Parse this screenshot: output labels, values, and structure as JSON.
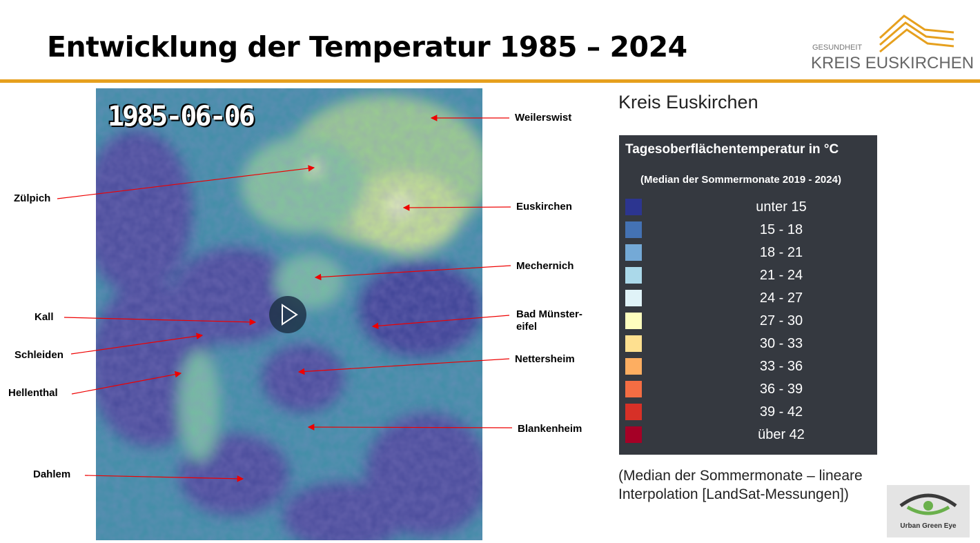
{
  "header": {
    "title": "Entwicklung der Temperatur 1985 – 2024",
    "logo_top": "GESUNDHEIT",
    "logo_bottom": "KREIS EUSKIRCHEN"
  },
  "map": {
    "date_stamp": "1985-06-06",
    "places": [
      "Weilerswist",
      "Zülpich",
      "Euskirchen",
      "Mechernich",
      "Kall",
      "Bad Münster-\neifel",
      "Schleiden",
      "Nettersheim",
      "Hellenthal",
      "Blankenheim",
      "Dahlem"
    ]
  },
  "side": {
    "heading": "Kreis Euskirchen",
    "legend": {
      "title": "Tagesoberflächentemperatur in °C",
      "subtitle": "(Median der Sommermonate 2019 - 2024)",
      "items": [
        {
          "label": "unter 15",
          "color": "#2c3590"
        },
        {
          "label": "15 - 18",
          "color": "#4472b4"
        },
        {
          "label": "18 - 21",
          "color": "#74a9d6"
        },
        {
          "label": "21 - 24",
          "color": "#abd9ea"
        },
        {
          "label": "24 - 27",
          "color": "#e0f3f8"
        },
        {
          "label": "27 - 30",
          "color": "#fefebe"
        },
        {
          "label": "30 - 33",
          "color": "#fee090"
        },
        {
          "label": "33 - 36",
          "color": "#fdae61"
        },
        {
          "label": "36 - 39",
          "color": "#f46d43"
        },
        {
          "label": "39 - 42",
          "color": "#d73027"
        },
        {
          "label": "über 42",
          "color": "#a50026"
        }
      ]
    },
    "caption": "(Median der Sommermonate – lineare Interpolation [LandSat-Messungen])",
    "partner_logo": "Urban Green Eye"
  }
}
